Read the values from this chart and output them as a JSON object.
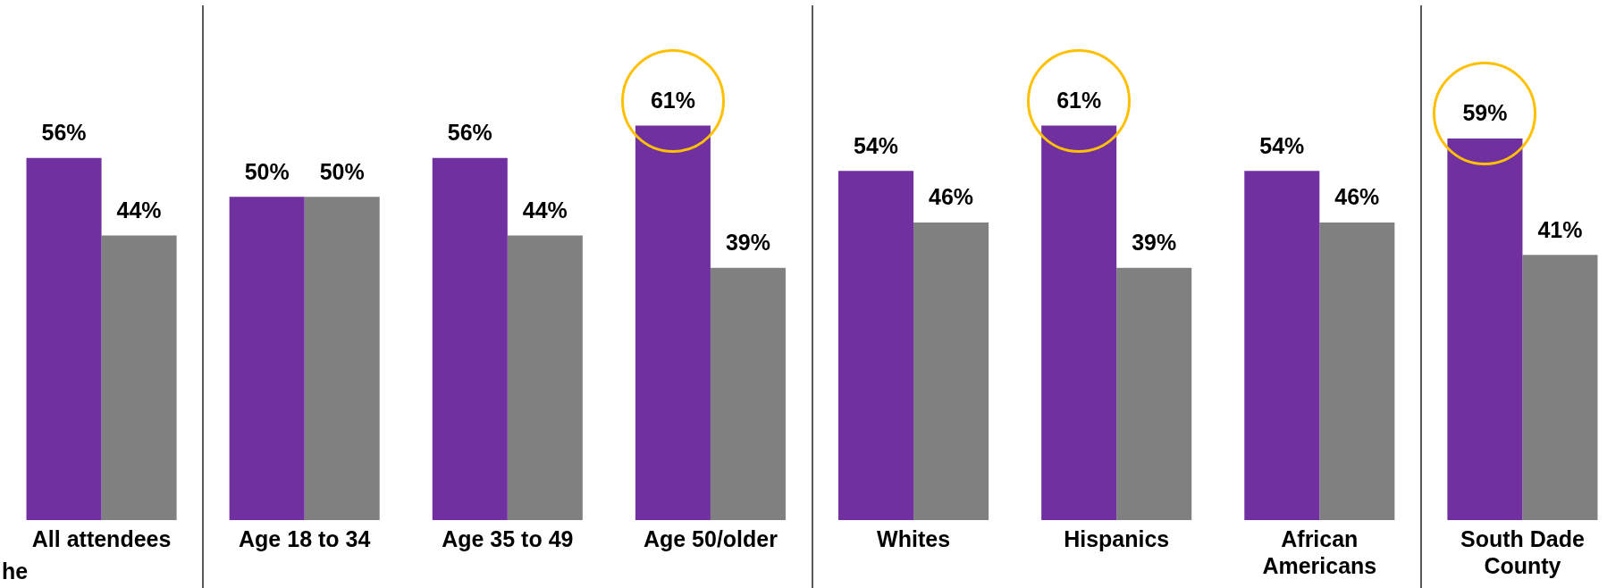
{
  "chart_data": {
    "type": "bar",
    "categories": [
      "All attendees",
      "Age 18 to 34",
      "Age 35 to 49",
      "Age 50/older",
      "Whites",
      "Hispanics",
      "African Americans",
      "South Dade County"
    ],
    "series": [
      {
        "color": "#7030a0",
        "values": [
          56,
          50,
          56,
          61,
          54,
          61,
          54,
          59
        ],
        "value_labels": [
          "56%",
          "50%",
          "56%",
          "61%",
          "54%",
          "61%",
          "54%",
          "59%"
        ]
      },
      {
        "color": "#808080",
        "values": [
          44,
          50,
          44,
          39,
          46,
          39,
          46,
          41
        ],
        "value_labels": [
          "44%",
          "50%",
          "44%",
          "39%",
          "46%",
          "39%",
          "46%",
          "41%"
        ]
      }
    ],
    "ylim": [
      0,
      80
    ],
    "grid": false,
    "legend": false,
    "tick_labels": "x",
    "annotations": [
      "he"
    ]
  }
}
